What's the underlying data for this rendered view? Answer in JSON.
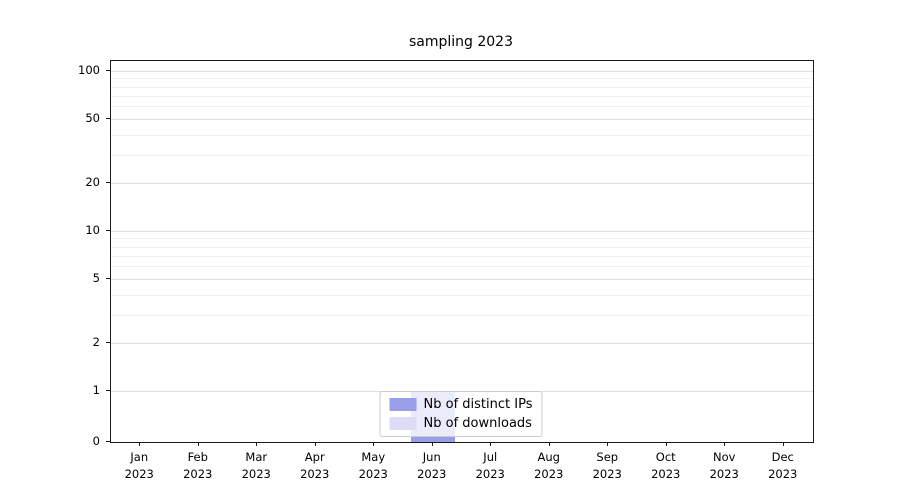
{
  "chart_data": {
    "type": "bar",
    "title": "sampling 2023",
    "categories": [
      "Jan",
      "Feb",
      "Mar",
      "Apr",
      "May",
      "Jun",
      "Jul",
      "Aug",
      "Sep",
      "Oct",
      "Nov",
      "Dec"
    ],
    "year": "2023",
    "series": [
      {
        "name": "Nb of distinct IPs",
        "color": "#989ee8",
        "values": [
          0,
          0,
          0,
          0,
          0,
          1,
          0,
          0,
          0,
          0,
          0,
          0
        ]
      },
      {
        "name": "Nb of downloads",
        "color": "#dcdcf8",
        "values": [
          0,
          0,
          0,
          0,
          0,
          1,
          0,
          0,
          0,
          0,
          0,
          0
        ]
      }
    ],
    "yscale": "symlog",
    "yticks": [
      0,
      1,
      2,
      5,
      10,
      20,
      50,
      100
    ],
    "y_minor_gridlines": [
      3,
      4,
      6,
      7,
      8,
      9,
      30,
      40,
      60,
      70,
      80,
      90
    ],
    "ylim": [
      0,
      115
    ],
    "grid": true,
    "legend": {
      "position": "lower center",
      "entries": [
        "Nb of distinct IPs",
        "Nb of downloads"
      ]
    }
  }
}
